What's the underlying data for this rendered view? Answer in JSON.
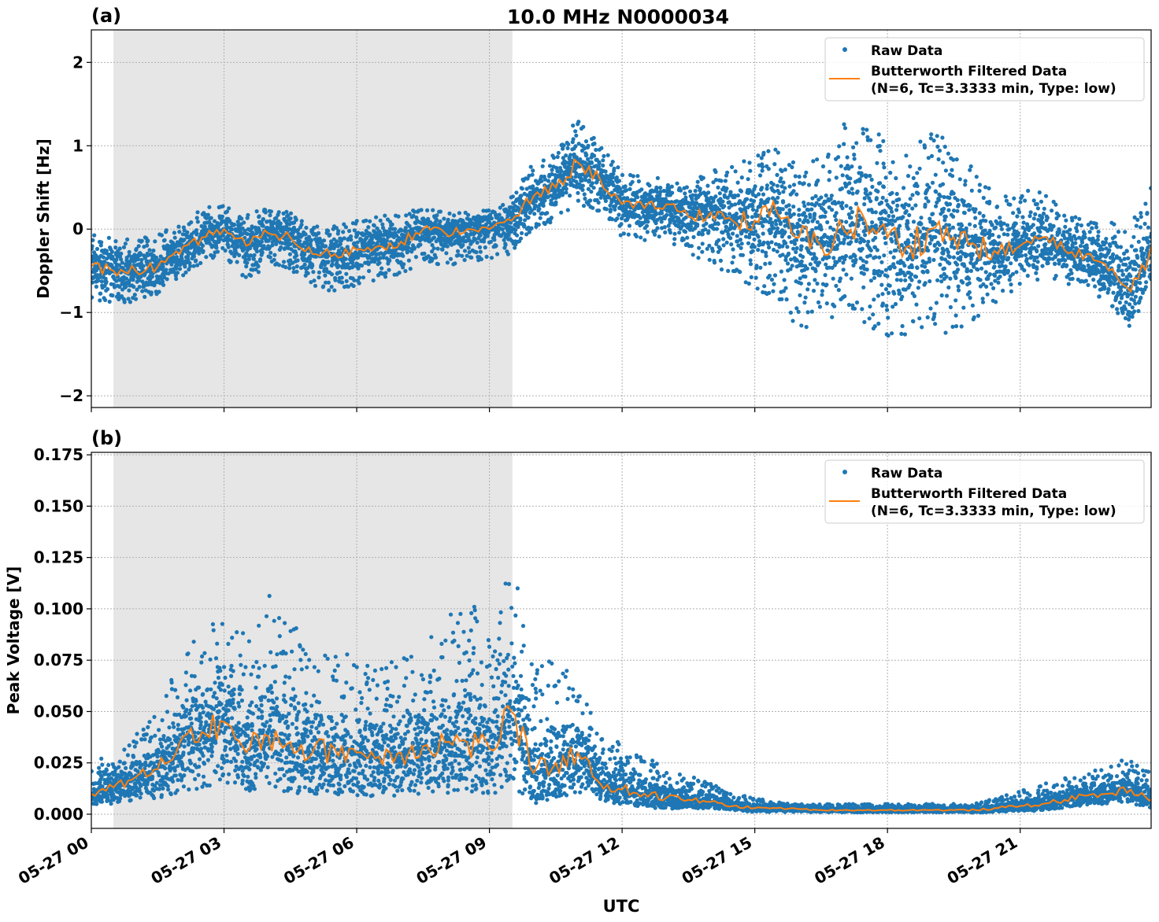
{
  "title": "10.0 MHz N0000034",
  "xlabel": "UTC",
  "x_tick_labels": [
    "05-27 00",
    "05-27 03",
    "05-27 06",
    "05-27 09",
    "05-27 12",
    "05-27 15",
    "05-27 18",
    "05-27 21"
  ],
  "x_tick_hours": [
    0,
    3,
    6,
    9,
    12,
    15,
    18,
    21
  ],
  "x_range_hours": [
    0,
    23.96
  ],
  "shaded_region_hours": [
    0.5,
    9.52
  ],
  "colors": {
    "raw": "#1f77b4",
    "filtered": "#ff7f0e",
    "shade": "#e6e6e6"
  },
  "legend": {
    "raw": "Raw Data",
    "filtered_line1": "Butterworth Filtered Data",
    "filtered_line2": "(N=6, Tc=3.3333 min, Type: low)",
    "placement": "top-right"
  },
  "chart_data": [
    {
      "panel_label": "(a)",
      "type": "scatter+line",
      "ylabel": "Doppler Shift [Hz]",
      "ylim": [
        -2.14,
        2.39
      ],
      "y_ticks": [
        2,
        1,
        0,
        -1,
        -2
      ],
      "y_tick_labels": [
        "2",
        "1",
        "0",
        "−1",
        "−2"
      ],
      "grid": true,
      "x_hours_step": 0.5,
      "filtered": [
        -0.45,
        -0.5,
        -0.5,
        -0.45,
        -0.3,
        -0.1,
        0.0,
        -0.2,
        -0.05,
        -0.1,
        -0.3,
        -0.3,
        -0.25,
        -0.2,
        -0.15,
        0.0,
        -0.05,
        0.0,
        0.0,
        0.1,
        0.4,
        0.5,
        0.8,
        0.6,
        0.3,
        0.25,
        0.3,
        0.15,
        0.2,
        0.1,
        0.1,
        0.2,
        -0.1,
        -0.2,
        0.0,
        0.1,
        -0.1,
        -0.2,
        0.0,
        -0.1,
        -0.2,
        -0.3,
        -0.2,
        -0.1,
        -0.25,
        -0.3,
        -0.5,
        -0.75,
        -0.2
      ],
      "raw_lower": [
        -0.9,
        -0.9,
        -0.9,
        -0.8,
        -0.6,
        -0.4,
        -0.3,
        -0.7,
        -0.4,
        -0.5,
        -0.7,
        -0.75,
        -0.7,
        -0.6,
        -0.55,
        -0.4,
        -0.45,
        -0.4,
        -0.35,
        -0.3,
        0.0,
        0.1,
        0.3,
        0.2,
        -0.1,
        -0.15,
        -0.1,
        -0.35,
        -0.4,
        -0.6,
        -0.7,
        -0.9,
        -1.2,
        -1.3,
        -1.0,
        -1.2,
        -1.3,
        -1.3,
        -1.2,
        -1.3,
        -1.1,
        -0.9,
        -0.7,
        -0.6,
        -0.65,
        -0.7,
        -0.9,
        -1.2,
        -0.6
      ],
      "raw_upper": [
        -0.05,
        -0.1,
        -0.1,
        -0.05,
        0.1,
        0.25,
        0.3,
        0.2,
        0.25,
        0.2,
        0.05,
        0.05,
        0.1,
        0.15,
        0.2,
        0.25,
        0.2,
        0.2,
        0.25,
        0.4,
        0.8,
        0.9,
        1.35,
        1.0,
        0.7,
        0.65,
        0.6,
        0.55,
        0.7,
        0.8,
        0.9,
        1.0,
        0.8,
        0.9,
        1.3,
        1.4,
        1.2,
        1.1,
        1.2,
        1.0,
        0.7,
        0.4,
        0.5,
        0.5,
        0.2,
        0.1,
        0.1,
        0.0,
        0.9
      ]
    },
    {
      "panel_label": "(b)",
      "type": "scatter+line",
      "ylabel": "Peak Voltage [V]",
      "ylim": [
        -0.0069,
        0.1762
      ],
      "y_ticks": [
        0,
        0.025,
        0.05,
        0.075,
        0.1,
        0.125,
        0.15,
        0.175
      ],
      "y_tick_labels": [
        "0.000",
        "0.025",
        "0.050",
        "0.075",
        "0.100",
        "0.125",
        "0.150",
        "0.175"
      ],
      "grid": true,
      "x_hours_step": 0.5,
      "filtered": [
        0.01,
        0.013,
        0.018,
        0.022,
        0.035,
        0.04,
        0.045,
        0.03,
        0.038,
        0.035,
        0.03,
        0.032,
        0.03,
        0.028,
        0.03,
        0.033,
        0.035,
        0.035,
        0.032,
        0.05,
        0.02,
        0.025,
        0.03,
        0.015,
        0.012,
        0.01,
        0.008,
        0.007,
        0.006,
        0.004,
        0.003,
        0.003,
        0.0025,
        0.002,
        0.002,
        0.002,
        0.002,
        0.002,
        0.002,
        0.002,
        0.002,
        0.003,
        0.004,
        0.005,
        0.007,
        0.009,
        0.01,
        0.012,
        0.007
      ],
      "raw_lower": [
        0.004,
        0.005,
        0.007,
        0.008,
        0.01,
        0.012,
        0.013,
        0.01,
        0.011,
        0.01,
        0.009,
        0.009,
        0.009,
        0.008,
        0.009,
        0.009,
        0.01,
        0.01,
        0.009,
        0.012,
        0.007,
        0.008,
        0.01,
        0.006,
        0.005,
        0.004,
        0.003,
        0.003,
        0.003,
        0.002,
        0.001,
        0.001,
        0.001,
        0.001,
        0.001,
        0.001,
        0.001,
        0.001,
        0.001,
        0.001,
        0.001,
        0.001,
        0.002,
        0.002,
        0.003,
        0.004,
        0.005,
        0.005,
        0.003
      ],
      "raw_upper": [
        0.025,
        0.03,
        0.04,
        0.05,
        0.08,
        0.09,
        0.1,
        0.09,
        0.11,
        0.1,
        0.08,
        0.085,
        0.075,
        0.07,
        0.08,
        0.08,
        0.1,
        0.11,
        0.085,
        0.13,
        0.07,
        0.08,
        0.065,
        0.04,
        0.035,
        0.03,
        0.025,
        0.02,
        0.015,
        0.01,
        0.008,
        0.006,
        0.005,
        0.005,
        0.005,
        0.005,
        0.005,
        0.005,
        0.005,
        0.005,
        0.006,
        0.008,
        0.012,
        0.015,
        0.018,
        0.02,
        0.025,
        0.028,
        0.02
      ]
    }
  ]
}
